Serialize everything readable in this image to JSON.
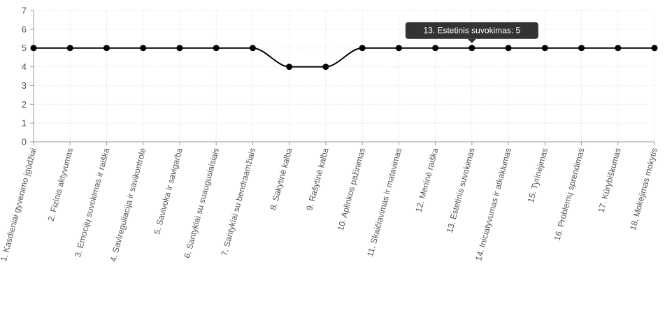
{
  "chart_data": {
    "type": "line",
    "categories": [
      "1. Kasdieniai gyvenimo įgūdžiai",
      "2. Fizinis aktyvumas",
      "3. Emocijų suvokimas ir raiška",
      "4. Savireguliacija ir savikontrolė",
      "5. Savivoka ir savigarba",
      "6. Santykiai su suaugusiaisiais",
      "7. Santykiai su bendraamžiais",
      "8. Sakytinė kalba",
      "9. Rašytinė kalba",
      "10. Aplinkos pažinimas",
      "11. Skaičiavimas ir matavimas",
      "12. Meninė raiška",
      "13. Estetinis suvokimas",
      "14. Iniciatyvumas ir atkaklumas",
      "15. Tyrinėjimas",
      "16. Problemų sprendimas",
      "17. Kūrybiškumas",
      "18. Mokėjimas mokytis"
    ],
    "series": [
      {
        "values": [
          5,
          5,
          5,
          5,
          5,
          5,
          5,
          4,
          4,
          5,
          5,
          5,
          5,
          5,
          5,
          5,
          5,
          5
        ]
      }
    ],
    "ylim": [
      0,
      7
    ],
    "y_ticks": [
      0,
      1,
      2,
      3,
      4,
      5,
      6,
      7
    ],
    "grid": true,
    "colors": {
      "line": "#000000",
      "point": "#000000",
      "grid": "#e6e6e6",
      "axis": "#999999",
      "tooltip_bg": "#333333"
    },
    "tooltip": {
      "index": 12,
      "text": "13. Estetinis suvokimas: 5"
    }
  }
}
